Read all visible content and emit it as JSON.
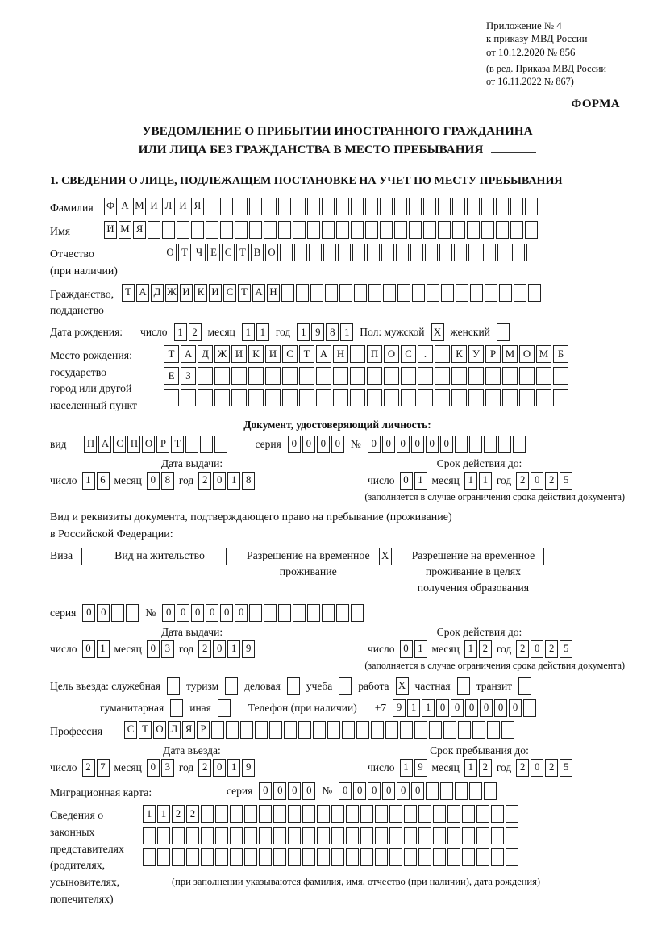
{
  "header": {
    "ref_lines": [
      "Приложение № 4",
      "к приказу МВД России",
      "от 10.12.2020 № 856",
      "(в ред. Приказа МВД России",
      "от 16.11.2022 № 867)"
    ],
    "forma": "ФОРМА",
    "title_line1": "УВЕДОМЛЕНИЕ О ПРИБЫТИИ ИНОСТРАННОГО ГРАЖДАНИНА",
    "title_line2": "ИЛИ ЛИЦА БЕЗ ГРАЖДАНСТВА В МЕСТО ПРЕБЫВАНИЯ",
    "section1_title": "1. СВЕДЕНИЯ О ЛИЦЕ, ПОДЛЕЖАЩЕМ ПОСТАНОВКЕ НА УЧЕТ ПО МЕСТУ ПРЕБЫВАНИЯ"
  },
  "labels": {
    "surname": "Фамилия",
    "name": "Имя",
    "patronymic_l1": "Отчество",
    "patronymic_l2": "(при наличии)",
    "citizenship_l1": "Гражданство,",
    "citizenship_l2": "подданство",
    "birthdate": "Дата рождения:",
    "day": "число",
    "month": "месяц",
    "year": "год",
    "sex": "Пол: мужской",
    "female": "женский",
    "birthplace_l1": "Место рождения:",
    "birthplace_l2": "государство",
    "birthplace_l3": "город или другой",
    "birthplace_l4": "населенный пункт",
    "identity_doc": "Документ, удостоверяющий личность:",
    "kind": "вид",
    "series": "серия",
    "number": "№",
    "issue_date": "Дата выдачи:",
    "valid_until": "Срок действия до:",
    "valid_note": "(заполняется в случае ограничения срока действия документа)",
    "residence_doc_l1": "Вид и реквизиты документа, подтверждающего право на пребывание (проживание)",
    "residence_doc_l2": "в Российской Федерации:",
    "visa": "Виза",
    "residence_permit": "Вид на жительство",
    "temp_permit_l1": "Разрешение на временное",
    "temp_permit_l2": "проживание",
    "temp_permit_edu_l1": "Разрешение на временное",
    "temp_permit_edu_l2": "проживание в целях",
    "temp_permit_edu_l3": "получения образования",
    "purpose": "Цель въезда: служебная",
    "tourism": "туризм",
    "business": "деловая",
    "study": "учеба",
    "work": "работа",
    "private": "частная",
    "transit": "транзит",
    "humanitarian": "гуманитарная",
    "other": "иная",
    "phone": "Телефон (при наличии)",
    "phone_prefix": "+7",
    "profession": "Профессия",
    "entry_date": "Дата въезда:",
    "stay_until": "Срок пребывания до:",
    "migration_card": "Миграционная карта:",
    "representatives": [
      "Сведения о",
      "законных",
      "представителях",
      "(родителях,",
      "усыновителях,",
      "попечителях)"
    ],
    "rep_note": "(при заполнении указываются фамилия, имя, отчество (при наличии), дата рождения)"
  },
  "rows": {
    "surname": {
      "chars": "ФАМИЛИЯ",
      "count": 30
    },
    "name": {
      "chars": "ИМЯ",
      "count": 30
    },
    "patronymic": {
      "chars": "ОТЧЕСТВО",
      "count": 26
    },
    "citizenship": {
      "chars": "ТАДЖИКИСТАН",
      "count": 29
    },
    "birth_day": {
      "chars": "12",
      "count": 2
    },
    "birth_month": {
      "chars": "11",
      "count": 2
    },
    "birth_year": {
      "chars": "1981",
      "count": 4
    },
    "sex_male": {
      "chars": "X",
      "count": 1
    },
    "sex_female": {
      "chars": "",
      "count": 1
    },
    "birthplace1": {
      "chars": "ТАДЖИКИСТАН ПОС. КУРМОМБ",
      "count": 24
    },
    "birthplace2": {
      "chars": "ЕЗ",
      "count": 24
    },
    "birthplace3": {
      "chars": "",
      "count": 24
    },
    "doc_type": {
      "chars": "ПАСПОРТ",
      "count": 10
    },
    "doc_series": {
      "chars": "0000",
      "count": 4
    },
    "doc_number": {
      "chars": "000000",
      "count": 11
    },
    "doc_issue_day": {
      "chars": "16",
      "count": 2
    },
    "doc_issue_month": {
      "chars": "08",
      "count": 2
    },
    "doc_issue_year": {
      "chars": "2018",
      "count": 4
    },
    "doc_exp_day": {
      "chars": "01",
      "count": 2
    },
    "doc_exp_month": {
      "chars": "11",
      "count": 2
    },
    "doc_exp_year": {
      "chars": "2025",
      "count": 4
    },
    "cb_visa": {
      "chars": "",
      "count": 1
    },
    "cb_residence_permit": {
      "chars": "",
      "count": 1
    },
    "cb_temp_permit": {
      "chars": "X",
      "count": 1
    },
    "cb_temp_permit_edu": {
      "chars": "",
      "count": 1
    },
    "permit_series": {
      "chars": "00",
      "count": 4
    },
    "permit_number": {
      "chars": "000000",
      "count": 14
    },
    "permit_issue_day": {
      "chars": "01",
      "count": 2
    },
    "permit_issue_month": {
      "chars": "03",
      "count": 2
    },
    "permit_issue_year": {
      "chars": "2019",
      "count": 4
    },
    "permit_exp_day": {
      "chars": "01",
      "count": 2
    },
    "permit_exp_month": {
      "chars": "12",
      "count": 2
    },
    "permit_exp_year": {
      "chars": "2025",
      "count": 4
    },
    "cb_official": {
      "chars": "",
      "count": 1
    },
    "cb_tourism": {
      "chars": "",
      "count": 1
    },
    "cb_business": {
      "chars": "",
      "count": 1
    },
    "cb_study": {
      "chars": "",
      "count": 1
    },
    "cb_work": {
      "chars": "X",
      "count": 1
    },
    "cb_private": {
      "chars": "",
      "count": 1
    },
    "cb_transit": {
      "chars": "",
      "count": 1
    },
    "cb_humanitarian": {
      "chars": "",
      "count": 1
    },
    "cb_other": {
      "chars": "",
      "count": 1
    },
    "phone": {
      "chars": "911000000",
      "count": 10
    },
    "profession": {
      "chars": "СТОЛЯР",
      "count": 27
    },
    "entry_day": {
      "chars": "27",
      "count": 2
    },
    "entry_month": {
      "chars": "03",
      "count": 2
    },
    "entry_year": {
      "chars": "2019",
      "count": 4
    },
    "stay_day": {
      "chars": "19",
      "count": 2
    },
    "stay_month": {
      "chars": "12",
      "count": 2
    },
    "stay_year": {
      "chars": "2025",
      "count": 4
    },
    "mig_series": {
      "chars": "0000",
      "count": 4
    },
    "mig_number": {
      "chars": "000000",
      "count": 11
    },
    "rep1": {
      "chars": "1122",
      "count": 26
    },
    "rep2": {
      "chars": "",
      "count": 26
    },
    "rep3": {
      "chars": "",
      "count": 26
    }
  }
}
